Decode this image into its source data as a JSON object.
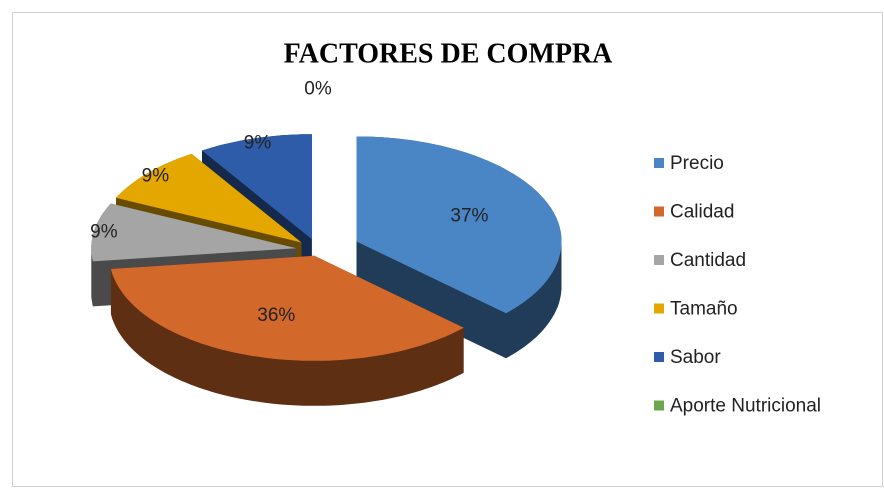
{
  "chart_data": {
    "type": "pie",
    "title": "FACTORES DE COMPRA",
    "categories": [
      "Precio",
      "Calidad",
      "Cantidad",
      "Tamaño",
      "Sabor",
      "Aporte Nutricional"
    ],
    "values": [
      37,
      36,
      9,
      9,
      9,
      0
    ],
    "value_labels": [
      "37%",
      "36%",
      "9%",
      "9%",
      "9%",
      "0%"
    ],
    "colors": [
      "#4a86c5",
      "#d2692a",
      "#a5a5a5",
      "#e3a700",
      "#2f5ca8",
      "#6aa84f"
    ],
    "legend": "right"
  }
}
